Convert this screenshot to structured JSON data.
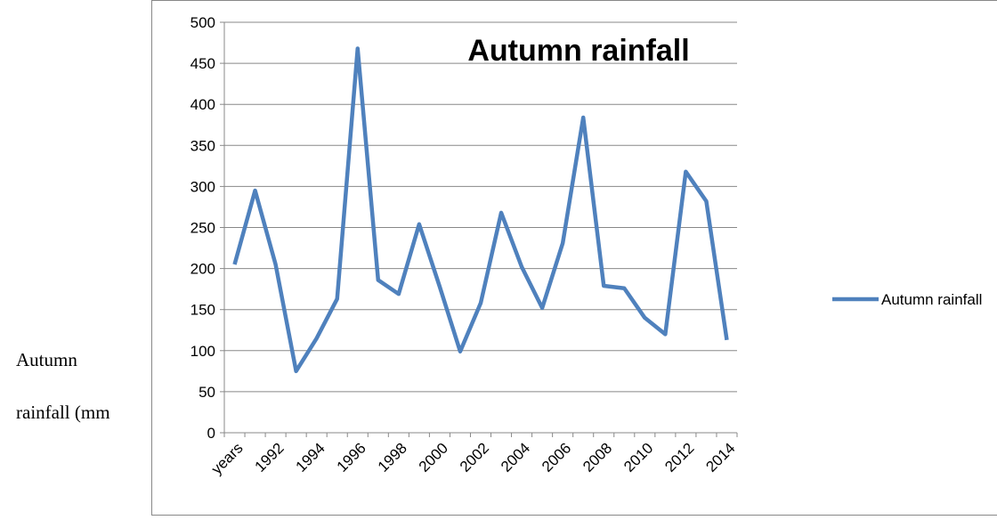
{
  "document": {
    "side_text": [
      "Autumn",
      "rainfall (mm"
    ]
  },
  "chart_data": {
    "type": "line",
    "title": "Autumn rainfall",
    "categories": [
      "years",
      null,
      "1992",
      null,
      "1994",
      null,
      "1996",
      null,
      "1998",
      null,
      "2000",
      null,
      "2002",
      null,
      "2004",
      null,
      "2006",
      null,
      "2008",
      null,
      "2010",
      null,
      "2012",
      null,
      "2014"
    ],
    "series": [
      {
        "name": "Autumn rainfall",
        "color": "#4f81bd",
        "values": [
          205,
          295,
          205,
          75,
          115,
          163,
          468,
          186,
          169,
          254,
          178,
          99,
          158,
          268,
          202,
          152,
          231,
          384,
          179,
          176,
          140,
          120,
          318,
          282,
          113
        ]
      }
    ],
    "ylim": [
      0,
      500
    ],
    "yticks": [
      0,
      50,
      100,
      150,
      200,
      250,
      300,
      350,
      400,
      450,
      500
    ],
    "grid": true,
    "legend": "right"
  }
}
